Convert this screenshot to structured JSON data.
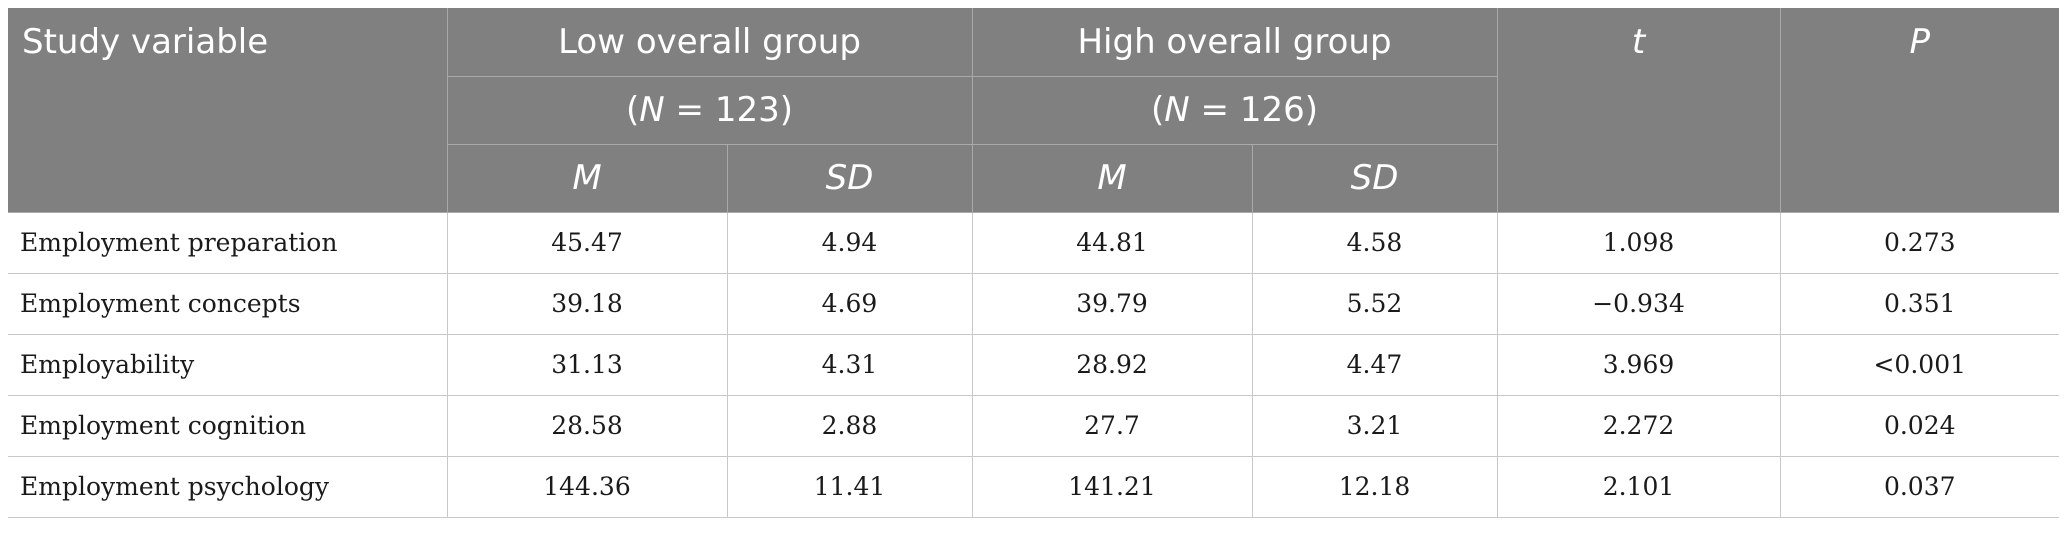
{
  "table": {
    "header": {
      "study_variable": "Study variable",
      "low_group": "Low overall group",
      "low_n": "(N = 123)",
      "high_group": "High overall group",
      "high_n": "(N = 126)",
      "t": "t",
      "p": "P",
      "m": "M",
      "sd": "SD"
    },
    "rows": [
      {
        "variable": "Employment preparation",
        "low_m": "45.47",
        "low_sd": "4.94",
        "high_m": "44.81",
        "high_sd": "4.58",
        "t": "1.098",
        "p": "0.273"
      },
      {
        "variable": "Employment concepts",
        "low_m": "39.18",
        "low_sd": "4.69",
        "high_m": "39.79",
        "high_sd": "5.52",
        "t": "−0.934",
        "p": "0.351"
      },
      {
        "variable": "Employability",
        "low_m": "31.13",
        "low_sd": "4.31",
        "high_m": "28.92",
        "high_sd": "4.47",
        "t": "3.969",
        "p": "<0.001"
      },
      {
        "variable": "Employment cognition",
        "low_m": "28.58",
        "low_sd": "2.88",
        "high_m": "27.7",
        "high_sd": "3.21",
        "t": "2.272",
        "p": "0.024"
      },
      {
        "variable": "Employment psychology",
        "low_m": "144.36",
        "low_sd": "11.41",
        "high_m": "141.21",
        "high_sd": "12.18",
        "t": "2.101",
        "p": "0.037"
      }
    ]
  }
}
